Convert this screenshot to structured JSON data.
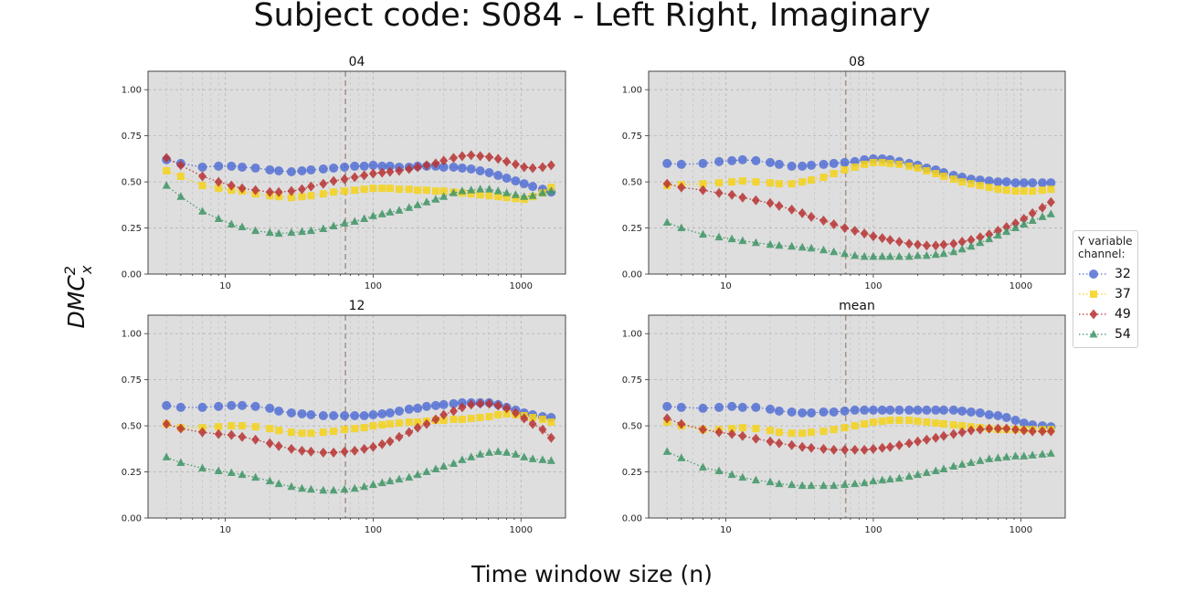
{
  "figure": {
    "title": "Subject code: S084 - Left Right, Imaginary",
    "xlabel": "Time window size (n)",
    "ylabel_base": "DMC",
    "ylabel_sup": "2",
    "ylabel_sub": "x"
  },
  "legend": {
    "title_line1": "Y variable",
    "title_line2": "channel:",
    "placement": "center-right"
  },
  "chart_data": {
    "type": "scatter",
    "x_scale": "log",
    "xlim": [
      3,
      2000
    ],
    "ylim": [
      0,
      1.1
    ],
    "x_ticks": [
      10,
      100,
      1000
    ],
    "x_tick_labels": [
      "10",
      "100",
      "1000"
    ],
    "y_ticks": [
      0,
      0.25,
      0.5,
      0.75,
      1.0
    ],
    "y_tick_labels": [
      "0.00",
      "0.25",
      "0.50",
      "0.75",
      "1.00"
    ],
    "grid": true,
    "vline_x": 65,
    "x": [
      4,
      5,
      7,
      9,
      11,
      13,
      16,
      20,
      23,
      28,
      33,
      38,
      46,
      54,
      64,
      75,
      87,
      100,
      115,
      130,
      150,
      175,
      200,
      230,
      265,
      300,
      350,
      400,
      460,
      530,
      610,
      700,
      800,
      920,
      1050,
      1200,
      1400,
      1600
    ],
    "series_meta": [
      {
        "name": "32",
        "color": "#5470d4",
        "marker": "circle"
      },
      {
        "name": "37",
        "color": "#f5d21a",
        "marker": "square"
      },
      {
        "name": "49",
        "color": "#b83434",
        "marker": "diamond"
      },
      {
        "name": "54",
        "color": "#3f9566",
        "marker": "triangle"
      }
    ],
    "panels": [
      {
        "title": "04",
        "series": [
          {
            "name": "32",
            "values": [
              0.62,
              0.6,
              0.58,
              0.585,
              0.585,
              0.58,
              0.575,
              0.565,
              0.56,
              0.555,
              0.56,
              0.565,
              0.57,
              0.575,
              0.58,
              0.585,
              0.585,
              0.59,
              0.585,
              0.585,
              0.58,
              0.58,
              0.585,
              0.585,
              0.585,
              0.58,
              0.58,
              0.575,
              0.57,
              0.56,
              0.55,
              0.535,
              0.52,
              0.505,
              0.49,
              0.475,
              0.46,
              0.445
            ]
          },
          {
            "name": "37",
            "values": [
              0.56,
              0.53,
              0.48,
              0.465,
              0.455,
              0.45,
              0.435,
              0.425,
              0.42,
              0.415,
              0.42,
              0.425,
              0.435,
              0.445,
              0.45,
              0.455,
              0.46,
              0.465,
              0.465,
              0.465,
              0.46,
              0.46,
              0.455,
              0.455,
              0.45,
              0.45,
              0.445,
              0.44,
              0.435,
              0.43,
              0.425,
              0.42,
              0.415,
              0.41,
              0.405,
              0.42,
              0.44,
              0.47
            ]
          },
          {
            "name": "49",
            "values": [
              0.63,
              0.59,
              0.53,
              0.5,
              0.48,
              0.465,
              0.455,
              0.445,
              0.445,
              0.45,
              0.46,
              0.475,
              0.49,
              0.505,
              0.515,
              0.525,
              0.535,
              0.545,
              0.55,
              0.555,
              0.56,
              0.57,
              0.58,
              0.59,
              0.6,
              0.615,
              0.63,
              0.64,
              0.645,
              0.64,
              0.635,
              0.625,
              0.61,
              0.595,
              0.58,
              0.575,
              0.58,
              0.59
            ]
          },
          {
            "name": "54",
            "values": [
              0.48,
              0.42,
              0.34,
              0.3,
              0.27,
              0.255,
              0.235,
              0.225,
              0.22,
              0.225,
              0.23,
              0.235,
              0.245,
              0.26,
              0.275,
              0.285,
              0.3,
              0.315,
              0.325,
              0.335,
              0.345,
              0.36,
              0.375,
              0.39,
              0.405,
              0.42,
              0.44,
              0.45,
              0.455,
              0.46,
              0.46,
              0.45,
              0.44,
              0.43,
              0.42,
              0.425,
              0.44,
              0.45
            ]
          }
        ]
      },
      {
        "title": "08",
        "series": [
          {
            "name": "32",
            "values": [
              0.6,
              0.595,
              0.6,
              0.61,
              0.615,
              0.62,
              0.615,
              0.605,
              0.595,
              0.585,
              0.585,
              0.59,
              0.595,
              0.6,
              0.605,
              0.61,
              0.62,
              0.625,
              0.625,
              0.62,
              0.61,
              0.6,
              0.59,
              0.575,
              0.565,
              0.55,
              0.535,
              0.525,
              0.515,
              0.51,
              0.505,
              0.5,
              0.5,
              0.495,
              0.495,
              0.495,
              0.495,
              0.495
            ]
          },
          {
            "name": "37",
            "values": [
              0.48,
              0.485,
              0.49,
              0.495,
              0.5,
              0.505,
              0.5,
              0.495,
              0.49,
              0.49,
              0.5,
              0.51,
              0.525,
              0.545,
              0.565,
              0.58,
              0.595,
              0.605,
              0.605,
              0.6,
              0.595,
              0.585,
              0.575,
              0.56,
              0.545,
              0.53,
              0.515,
              0.5,
              0.49,
              0.48,
              0.47,
              0.46,
              0.455,
              0.45,
              0.45,
              0.45,
              0.455,
              0.46
            ]
          },
          {
            "name": "49",
            "values": [
              0.49,
              0.47,
              0.455,
              0.44,
              0.43,
              0.415,
              0.4,
              0.385,
              0.37,
              0.35,
              0.33,
              0.31,
              0.29,
              0.27,
              0.25,
              0.235,
              0.22,
              0.205,
              0.195,
              0.185,
              0.175,
              0.165,
              0.16,
              0.155,
              0.155,
              0.16,
              0.165,
              0.175,
              0.185,
              0.2,
              0.215,
              0.235,
              0.255,
              0.275,
              0.3,
              0.33,
              0.36,
              0.39
            ]
          },
          {
            "name": "54",
            "values": [
              0.28,
              0.25,
              0.215,
              0.2,
              0.19,
              0.18,
              0.17,
              0.16,
              0.155,
              0.15,
              0.145,
              0.14,
              0.13,
              0.12,
              0.11,
              0.1,
              0.095,
              0.095,
              0.095,
              0.095,
              0.095,
              0.095,
              0.1,
              0.1,
              0.105,
              0.11,
              0.12,
              0.135,
              0.15,
              0.17,
              0.19,
              0.21,
              0.23,
              0.25,
              0.27,
              0.29,
              0.31,
              0.325
            ]
          }
        ]
      },
      {
        "title": "12",
        "series": [
          {
            "name": "32",
            "values": [
              0.61,
              0.6,
              0.6,
              0.605,
              0.61,
              0.61,
              0.605,
              0.595,
              0.58,
              0.57,
              0.565,
              0.56,
              0.555,
              0.555,
              0.555,
              0.555,
              0.555,
              0.56,
              0.565,
              0.57,
              0.58,
              0.59,
              0.595,
              0.605,
              0.61,
              0.615,
              0.62,
              0.625,
              0.625,
              0.625,
              0.625,
              0.615,
              0.6,
              0.585,
              0.57,
              0.56,
              0.55,
              0.545
            ]
          },
          {
            "name": "37",
            "values": [
              0.51,
              0.49,
              0.49,
              0.495,
              0.5,
              0.5,
              0.495,
              0.485,
              0.475,
              0.465,
              0.46,
              0.46,
              0.465,
              0.47,
              0.48,
              0.485,
              0.49,
              0.5,
              0.505,
              0.51,
              0.515,
              0.52,
              0.52,
              0.525,
              0.53,
              0.53,
              0.535,
              0.535,
              0.54,
              0.545,
              0.55,
              0.56,
              0.565,
              0.56,
              0.555,
              0.545,
              0.535,
              0.52
            ]
          },
          {
            "name": "49",
            "values": [
              0.51,
              0.485,
              0.465,
              0.455,
              0.45,
              0.44,
              0.425,
              0.405,
              0.39,
              0.375,
              0.365,
              0.36,
              0.355,
              0.355,
              0.36,
              0.365,
              0.375,
              0.385,
              0.4,
              0.415,
              0.44,
              0.465,
              0.49,
              0.51,
              0.535,
              0.56,
              0.58,
              0.6,
              0.615,
              0.62,
              0.62,
              0.61,
              0.595,
              0.57,
              0.54,
              0.51,
              0.48,
              0.435
            ]
          },
          {
            "name": "54",
            "values": [
              0.33,
              0.3,
              0.27,
              0.255,
              0.245,
              0.235,
              0.22,
              0.2,
              0.185,
              0.17,
              0.16,
              0.155,
              0.15,
              0.15,
              0.155,
              0.16,
              0.17,
              0.18,
              0.19,
              0.2,
              0.21,
              0.22,
              0.235,
              0.25,
              0.265,
              0.28,
              0.295,
              0.315,
              0.33,
              0.345,
              0.355,
              0.36,
              0.355,
              0.345,
              0.33,
              0.32,
              0.315,
              0.31
            ]
          }
        ]
      },
      {
        "title": "mean",
        "series": [
          {
            "name": "32",
            "values": [
              0.605,
              0.6,
              0.595,
              0.6,
              0.605,
              0.6,
              0.6,
              0.59,
              0.58,
              0.575,
              0.57,
              0.57,
              0.575,
              0.575,
              0.58,
              0.585,
              0.585,
              0.585,
              0.585,
              0.585,
              0.585,
              0.585,
              0.585,
              0.585,
              0.585,
              0.585,
              0.585,
              0.58,
              0.575,
              0.57,
              0.56,
              0.555,
              0.545,
              0.53,
              0.515,
              0.505,
              0.5,
              0.495
            ]
          },
          {
            "name": "37",
            "values": [
              0.52,
              0.5,
              0.48,
              0.48,
              0.485,
              0.49,
              0.485,
              0.475,
              0.465,
              0.46,
              0.46,
              0.465,
              0.47,
              0.48,
              0.49,
              0.5,
              0.51,
              0.52,
              0.525,
              0.53,
              0.53,
              0.53,
              0.525,
              0.52,
              0.515,
              0.51,
              0.505,
              0.5,
              0.495,
              0.49,
              0.485,
              0.48,
              0.48,
              0.48,
              0.48,
              0.48,
              0.48,
              0.48
            ]
          },
          {
            "name": "49",
            "values": [
              0.54,
              0.51,
              0.48,
              0.465,
              0.455,
              0.445,
              0.43,
              0.415,
              0.405,
              0.395,
              0.385,
              0.38,
              0.375,
              0.37,
              0.37,
              0.37,
              0.37,
              0.375,
              0.38,
              0.385,
              0.395,
              0.405,
              0.415,
              0.425,
              0.435,
              0.445,
              0.455,
              0.465,
              0.475,
              0.48,
              0.485,
              0.485,
              0.485,
              0.48,
              0.475,
              0.47,
              0.47,
              0.47
            ]
          },
          {
            "name": "54",
            "values": [
              0.36,
              0.325,
              0.275,
              0.255,
              0.235,
              0.22,
              0.205,
              0.195,
              0.185,
              0.18,
              0.175,
              0.175,
              0.175,
              0.175,
              0.18,
              0.185,
              0.19,
              0.2,
              0.205,
              0.21,
              0.215,
              0.225,
              0.235,
              0.245,
              0.255,
              0.265,
              0.28,
              0.29,
              0.3,
              0.31,
              0.32,
              0.325,
              0.33,
              0.335,
              0.335,
              0.34,
              0.345,
              0.35
            ]
          }
        ]
      }
    ]
  }
}
